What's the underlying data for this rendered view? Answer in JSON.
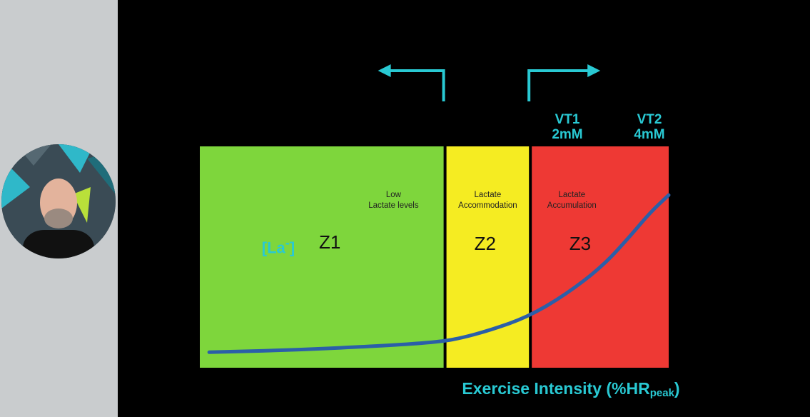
{
  "webcam": {
    "label": "presenter"
  },
  "chart_data": {
    "type": "area",
    "title": "",
    "xlabel": "Exercise Intensity (%HR",
    "xlabel_subscript": "peak",
    "xlabel_close": ")",
    "ylabel": "[La",
    "ylabel_superscript": "-",
    "ylabel_close": "]",
    "xlim": [
      0,
      100
    ],
    "ylim": [
      0,
      100
    ],
    "zones": [
      {
        "name": "Z1",
        "description": [
          "Low",
          "Lactate levels"
        ],
        "x_start": 0,
        "x_end": 52.3,
        "color": "#7ed63c"
      },
      {
        "name": "Z2",
        "description": [
          "Lactate",
          "Accommodation"
        ],
        "x_start": 52.3,
        "x_end": 70.5,
        "color": "#f5ec22"
      },
      {
        "name": "Z3",
        "description": [
          "Lactate",
          "Accumulation"
        ],
        "x_start": 70.5,
        "x_end": 100,
        "color": "#ee3934"
      }
    ],
    "thresholds": [
      {
        "name": "VT1",
        "value": "2mM",
        "x": 52.3,
        "arrow_direction": "left"
      },
      {
        "name": "VT2",
        "value": "4mM",
        "x": 70.5,
        "arrow_direction": "right"
      }
    ],
    "series": [
      {
        "color": "#2b5fa8",
        "x": [
          2,
          20,
          40,
          50,
          55,
          62,
          70,
          78,
          86,
          92,
          96,
          100
        ],
        "y": [
          7,
          8,
          10,
          11.5,
          13,
          17,
          23,
          33,
          46,
          60,
          70,
          78
        ]
      }
    ]
  }
}
